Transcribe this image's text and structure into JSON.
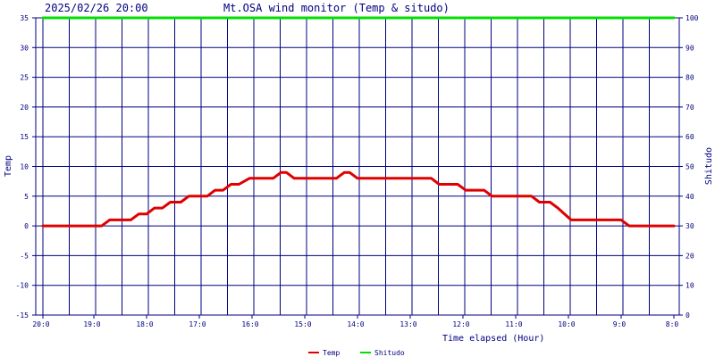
{
  "header": {
    "timestamp": "2025/02/26 20:00",
    "title": "Mt.OSA wind monitor (Temp & situdo)"
  },
  "chart_data": {
    "type": "line",
    "title": "Mt.OSA wind monitor (Temp & situdo)",
    "xlabel": "Time elapsed (Hour)",
    "ylabel": "Temp",
    "y2label": "Shitudo",
    "x_reversed": true,
    "xlim": [
      0,
      12
    ],
    "ylim": [
      -15,
      35
    ],
    "y2lim": [
      0,
      100
    ],
    "x_ticks": [
      {
        "x": 0,
        "label": "20:0"
      },
      {
        "x": 1,
        "label": "19:0"
      },
      {
        "x": 2,
        "label": "18:0"
      },
      {
        "x": 3,
        "label": "17:0"
      },
      {
        "x": 4,
        "label": "16:0"
      },
      {
        "x": 5,
        "label": "15:0"
      },
      {
        "x": 6,
        "label": "14:0"
      },
      {
        "x": 7,
        "label": "13:0"
      },
      {
        "x": 8,
        "label": "12:0"
      },
      {
        "x": 9,
        "label": "11:0"
      },
      {
        "x": 10,
        "label": "10:0"
      },
      {
        "x": 11,
        "label": "9:0"
      },
      {
        "x": 12,
        "label": "8:0"
      }
    ],
    "y_ticks": [
      -15,
      -10,
      -5,
      0,
      5,
      10,
      15,
      20,
      25,
      30,
      35
    ],
    "y2_ticks": [
      0,
      10,
      20,
      30,
      40,
      50,
      60,
      70,
      80,
      90,
      100
    ],
    "grid": true,
    "legend_position": "bottom-center",
    "series": [
      {
        "name": "Temp",
        "color": "#e00000",
        "axis": "left",
        "x": [
          0,
          1.15,
          1.3,
          1.7,
          1.85,
          2.0,
          2.15,
          2.3,
          2.45,
          2.65,
          2.8,
          2.95,
          3.15,
          3.3,
          3.45,
          3.6,
          3.75,
          3.95,
          4.05,
          4.4,
          4.55,
          4.65,
          4.8,
          4.9,
          5.05,
          5.6,
          5.75,
          5.85,
          6.0,
          6.1,
          7.4,
          7.55,
          7.9,
          8.05,
          8.4,
          8.55,
          9.3,
          9.45,
          9.65,
          9.8,
          10.05,
          10.2,
          11.0,
          11.15,
          12.0
        ],
        "y": [
          0,
          0,
          1,
          1,
          2,
          2,
          3,
          3,
          4,
          4,
          5,
          5,
          5,
          6,
          6,
          7,
          7,
          8,
          8,
          8,
          9,
          9,
          8,
          8,
          8,
          8,
          9,
          9,
          8,
          8,
          8,
          7,
          7,
          6,
          6,
          5,
          5,
          4,
          4,
          3,
          1,
          1,
          1,
          0,
          0
        ]
      },
      {
        "name": "Shitudo",
        "color": "#00e000",
        "axis": "right",
        "x": [
          0,
          12
        ],
        "y": [
          100,
          100
        ]
      }
    ]
  }
}
